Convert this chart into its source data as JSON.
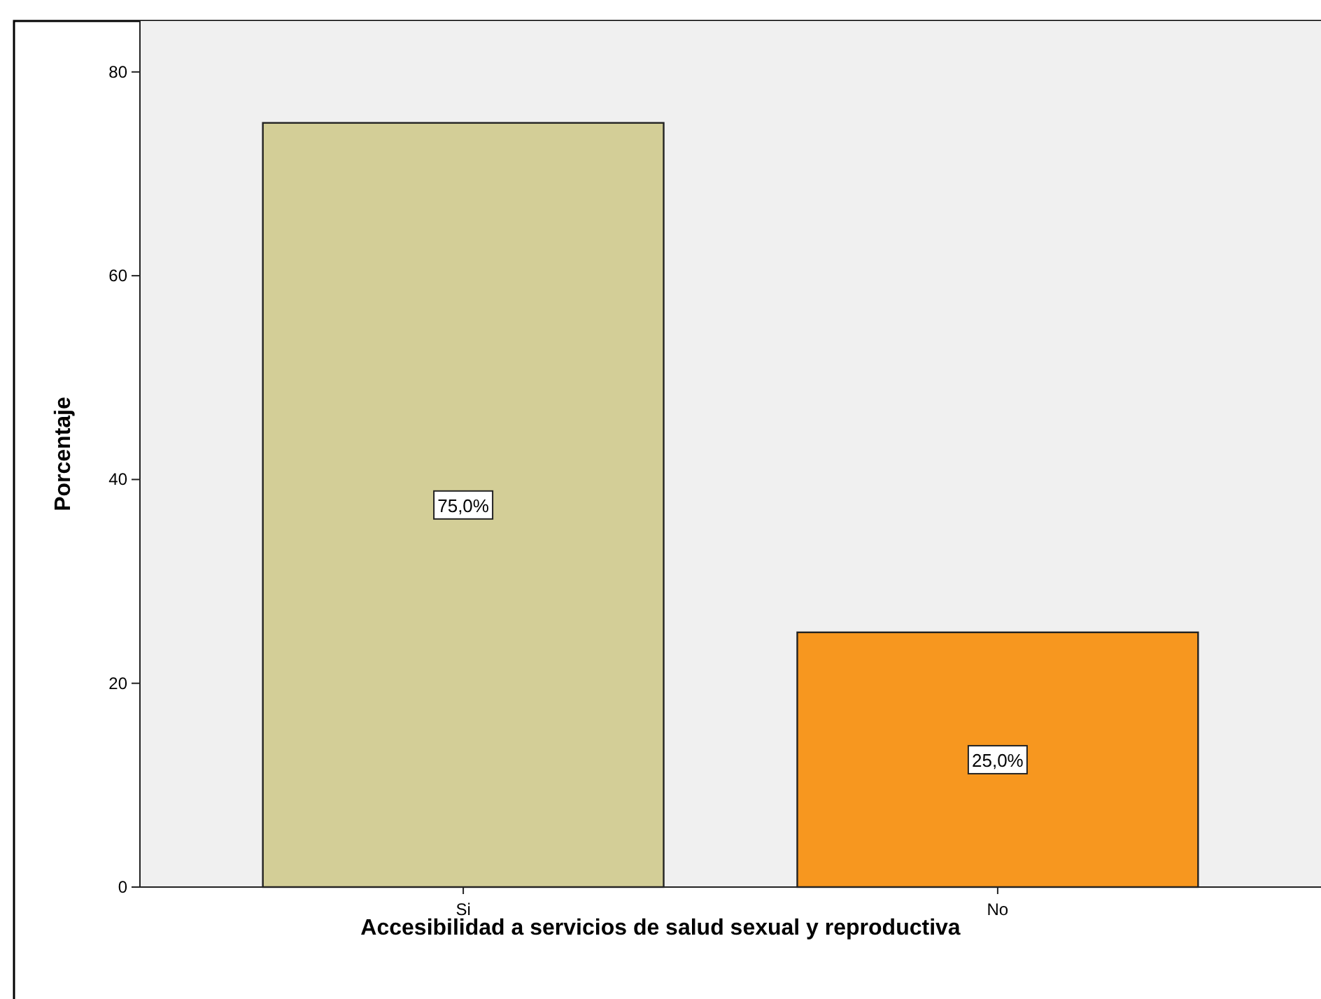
{
  "chart_data": {
    "type": "bar",
    "xlabel": "Accesibilidad a servicios de salud sexual y reproductiva",
    "ylabel": "Porcentaje",
    "categories": [
      "Si",
      "No"
    ],
    "values": [
      75,
      25
    ],
    "colors": [
      "#d3ce97",
      "#f7971f"
    ],
    "value_labels": [
      "75,0%",
      "25,0%"
    ],
    "ylim": [
      0,
      85
    ],
    "yticks": [
      0,
      20,
      40,
      60,
      80
    ],
    "grid": false
  }
}
